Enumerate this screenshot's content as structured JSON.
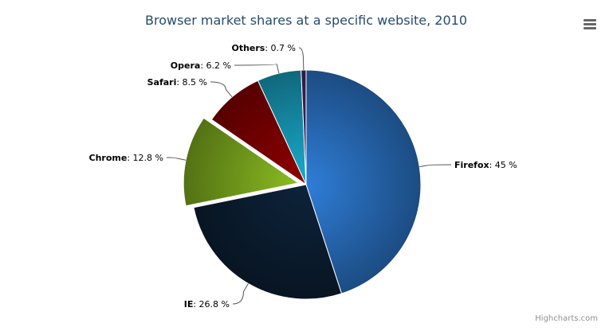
{
  "chart_data": {
    "type": "pie",
    "title": "Browser market shares at a specific website, 2010",
    "categories": [
      "Firefox",
      "IE",
      "Chrome",
      "Safari",
      "Opera",
      "Others"
    ],
    "values": [
      45.0,
      26.8,
      12.8,
      8.5,
      6.2,
      0.7
    ],
    "colors": [
      "#2f7ed8",
      "#0d233a",
      "#8bbc21",
      "#910000",
      "#1aadce",
      "#492970"
    ],
    "sliced": "Chrome",
    "value_suffix": " %",
    "legend": "none"
  },
  "menu_icon": "hamburger-menu-icon",
  "credit": "Highcharts.com"
}
